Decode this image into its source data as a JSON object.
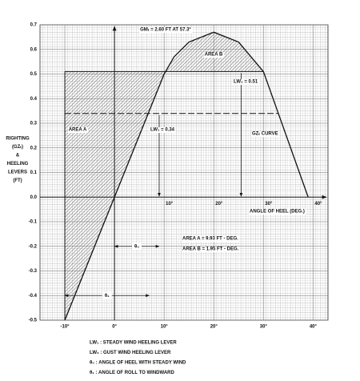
{
  "chart_data": {
    "type": "stability",
    "xlim": [
      -15,
      43
    ],
    "ylim": [
      -0.5,
      0.7
    ],
    "grid": true,
    "yticks": [
      0.7,
      0.6,
      0.5,
      0.4,
      0.3,
      0.2,
      0.1,
      {
        "value": 0,
        "label": "0.0"
      },
      -0.1,
      -0.2,
      -0.3,
      -0.4,
      -0.5
    ],
    "xticks": [
      {
        "value": -10,
        "label": "-10°"
      },
      {
        "value": 0,
        "label": "0°"
      },
      {
        "value": 10,
        "label": "10°"
      },
      {
        "value": 20,
        "label": "20°"
      },
      {
        "value": 30,
        "label": "30°"
      },
      {
        "value": 40,
        "label": "40°"
      }
    ],
    "xticks_zero_line": [
      {
        "value": 10,
        "label": "10°"
      },
      {
        "value": 20,
        "label": "20°"
      },
      {
        "value": 30,
        "label": "30°"
      },
      {
        "value": 40,
        "label": "40°"
      }
    ],
    "y_label": [
      "RIGHTING",
      "(GZₜ)",
      "&",
      "HEELING",
      "LEVERS",
      "(FT)"
    ],
    "x_label": "ANGLE OF HEEL (DEG.)",
    "curve": {
      "x": [
        -10,
        -5,
        0,
        5,
        10,
        12,
        15,
        20,
        25,
        30,
        33,
        36,
        39
      ],
      "values": [
        -0.5,
        -0.25,
        0,
        0.25,
        0.5,
        0.57,
        0.63,
        0.67,
        0.63,
        0.51,
        0.34,
        0.17,
        0
      ],
      "label": "GZₜ CURVE"
    },
    "lw1": {
      "value": 0.34,
      "label": "LW₁ = 0.34",
      "x_range": [
        -10,
        33
      ]
    },
    "lw2": {
      "value": 0.51,
      "label": "LW₂ = 0.51",
      "x_range": [
        -10,
        30
      ]
    },
    "area_a_label": "AREA A",
    "area_b_label": "AREA B",
    "gm_label": "GMₜ = 2.60 FT AT 57.3°",
    "heel_arrows": [
      9,
      25.5
    ],
    "theta0": {
      "range": [
        0,
        9
      ],
      "y": -0.2,
      "label": "θ₀"
    },
    "theta1": {
      "range": [
        -10,
        7
      ],
      "y": -0.4,
      "label": "θ₁"
    },
    "area_results": [
      "AREA A = 9.93 FT - DEG.",
      "AREA B =   1.95 FT - DEG."
    ],
    "legend": [
      "LW₁ : STEADY WIND HEELING LEVER",
      "LW₂ : GUST WIND HEELING LEVER",
      "θ₀ : ANGLE OF HEEL WITH STEADY WIND",
      "θ₁ : ANGLE OF ROLL TO WINDWARD"
    ]
  }
}
